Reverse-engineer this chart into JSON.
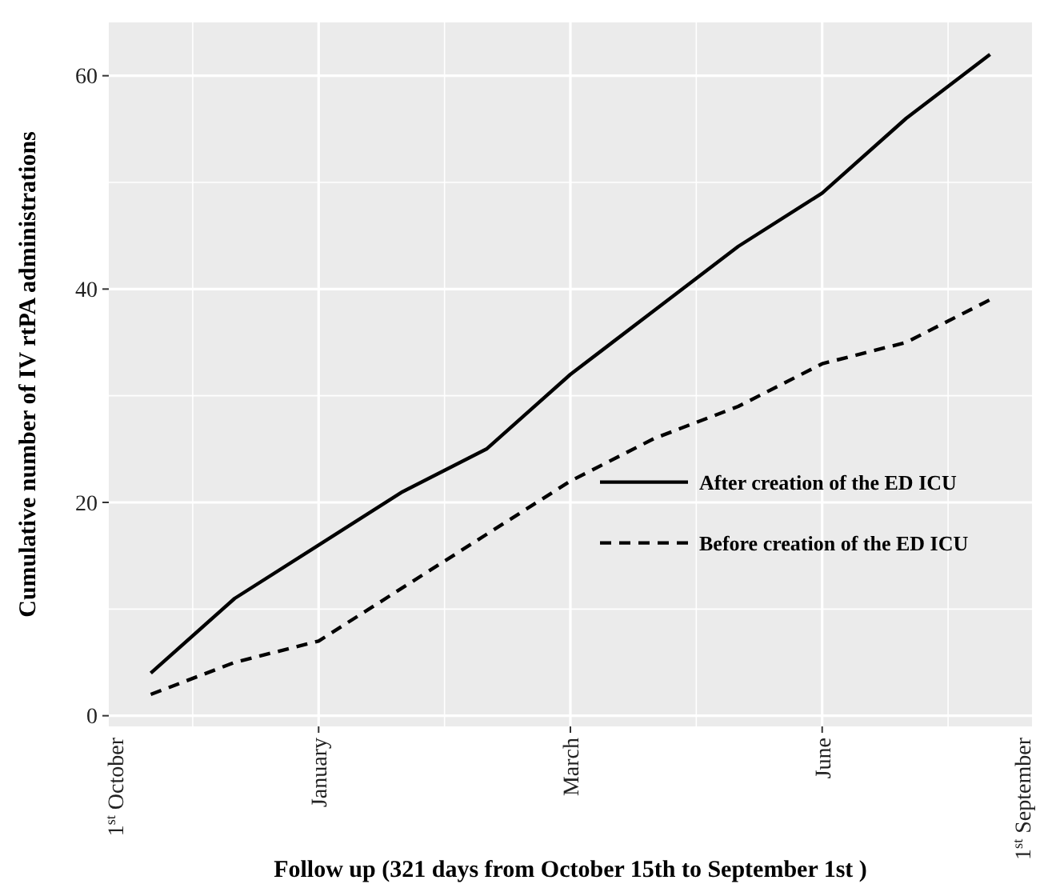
{
  "chart_data": {
    "type": "line",
    "xlabel": "Follow up (321 days from October 15th to September 1st  )",
    "ylabel": "Cumulative number of IV rtPA administrations",
    "categories": [
      null,
      null,
      "January",
      null,
      null,
      "March",
      null,
      null,
      "June",
      null,
      null
    ],
    "ylim": [
      -1,
      65
    ],
    "yticks": [
      0,
      20,
      40,
      60
    ],
    "grid": true,
    "legend": "bottom right",
    "annotations": [
      "1$^{st}$ October",
      "1$^{st}$ September"
    ],
    "series": [
      {
        "name": "After creation of the ED ICU",
        "color": "#000000",
        "line_style": "solid",
        "values": [
          4,
          11,
          16,
          21,
          25,
          32,
          38,
          44,
          49,
          56,
          62
        ]
      },
      {
        "name": "Before creation of the ED ICU",
        "color": "#000000",
        "line_style": "dashed",
        "values": [
          2,
          5,
          7,
          12,
          17,
          22,
          26,
          29,
          33,
          35,
          39
        ]
      }
    ]
  }
}
